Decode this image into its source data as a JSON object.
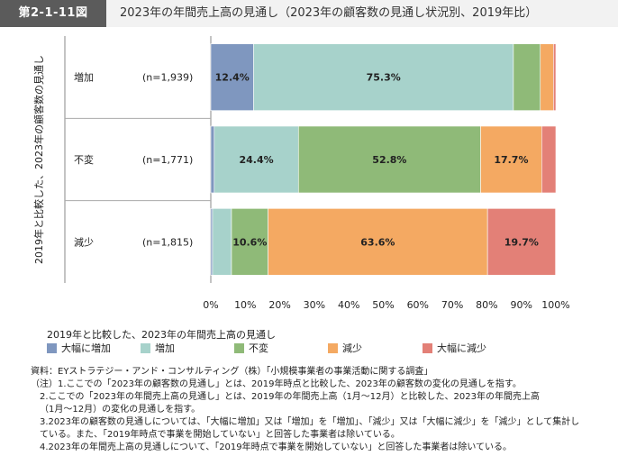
{
  "header": {
    "figure_label": "第2-1-11図",
    "title": "2023年の年間売上高の見通し（2023年の顧客数の見通し状況別、2019年比）"
  },
  "chart_data": {
    "type": "bar",
    "orientation": "horizontal",
    "stacked": true,
    "y_axis_label": "2019年と比較した、2023年の顧客数の見通し",
    "categories": [
      "増加",
      "不変",
      "減少"
    ],
    "category_counts": [
      "(n=1,939)",
      "(n=1,771)",
      "(n=1,815)"
    ],
    "series": [
      {
        "name": "大幅に増加",
        "color": "#7f97bf",
        "values": [
          12.4,
          1.0,
          0.5
        ]
      },
      {
        "name": "増加",
        "color": "#a7d2cb",
        "values": [
          75.3,
          24.4,
          5.5
        ]
      },
      {
        "name": "不変",
        "color": "#8fba78",
        "values": [
          7.8,
          52.8,
          10.6
        ]
      },
      {
        "name": "減少",
        "color": "#f4a962",
        "values": [
          3.8,
          17.7,
          63.6
        ]
      },
      {
        "name": "大幅に減少",
        "color": "#e38077",
        "values": [
          0.7,
          4.1,
          19.7
        ]
      }
    ],
    "data_labels": [
      [
        "12.4%",
        "75.3%",
        "",
        "",
        ""
      ],
      [
        "",
        "24.4%",
        "52.8%",
        "17.7%",
        ""
      ],
      [
        "",
        "",
        "10.6%",
        "63.6%",
        "19.7%"
      ]
    ],
    "x_ticks": [
      "0%",
      "10%",
      "20%",
      "30%",
      "40%",
      "50%",
      "60%",
      "70%",
      "80%",
      "90%",
      "100%"
    ],
    "xlim": [
      0,
      100
    ],
    "grid": false,
    "legend_title": "2019年と比較した、2023年の年間売上高の見通し",
    "legend_position": "bottom"
  },
  "notes": [
    "資料：EYストラテジー・アンド・コンサルティング（株）「小規模事業者の事業活動に関する調査」",
    "（注）1.ここでの「2023年の顧客数の見通し」とは、2019年時点と比較した、2023年の顧客数の変化の見通しを指す。",
    "2.ここでの「2023年の年間売上高の見通し」とは、2019年の年間売上高（1月～12月）と比較した、2023年の年間売上高",
    "（1月～12月）の変化の見通しを指す。",
    "3.2023年の顧客数の見通しについては、「大幅に増加」又は「増加」を「増加」、「減少」又は「大幅に減少」を「減少」として集計し",
    "ている。また、「2019年時点で事業を開始していない」と回答した事業者は除いている。",
    "4.2023年の年間売上高の見通しについて、「2019年時点で事業を開始していない」と回答した事業者は除いている。"
  ]
}
